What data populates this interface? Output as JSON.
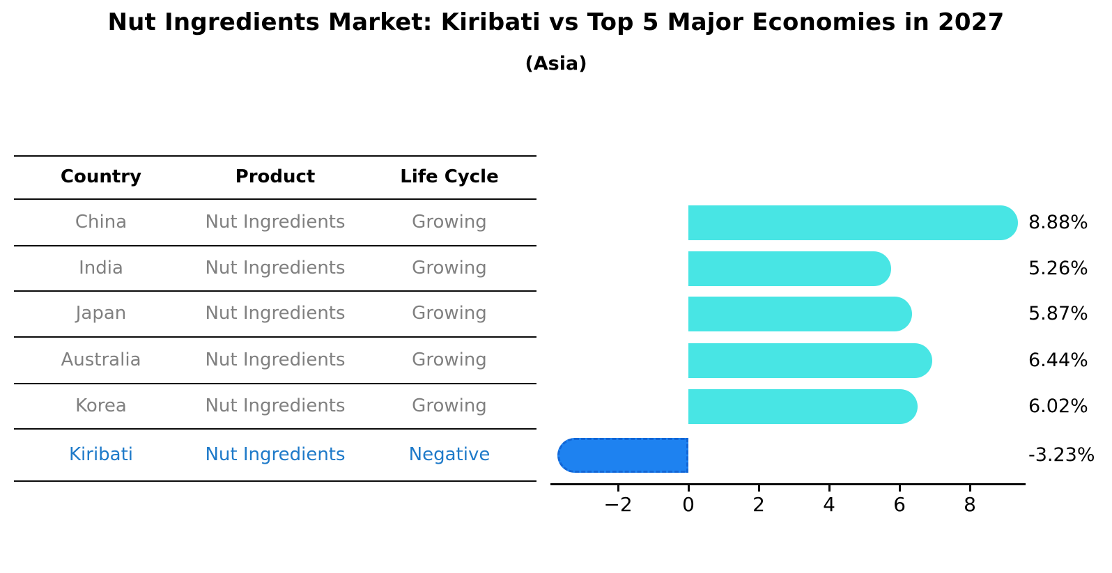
{
  "title": "Nut Ingredients Market: Kiribati vs Top 5 Major Economies in 2027",
  "subtitle": "(Asia)",
  "table": {
    "headers": [
      "Country",
      "Product",
      "Life Cycle"
    ],
    "rows": [
      {
        "country": "China",
        "product": "Nut Ingredients",
        "life_cycle": "Growing",
        "highlighted": false
      },
      {
        "country": "India",
        "product": "Nut Ingredients",
        "life_cycle": "Growing",
        "highlighted": false
      },
      {
        "country": "Japan",
        "product": "Nut Ingredients",
        "life_cycle": "Growing",
        "highlighted": false
      },
      {
        "country": "Australia",
        "product": "Nut Ingredients",
        "life_cycle": "Growing",
        "highlighted": false
      },
      {
        "country": "Korea",
        "product": "Nut Ingredients",
        "life_cycle": "Growing",
        "highlighted": false
      },
      {
        "country": "Kiribati",
        "product": "Nut Ingredients",
        "life_cycle": "Negative",
        "highlighted": true
      }
    ]
  },
  "chart_data": {
    "type": "bar",
    "orientation": "horizontal",
    "title": "Nut Ingredients Market: Kiribati vs Top 5 Major Economies in 2027 (Asia)",
    "categories": [
      "China",
      "India",
      "Japan",
      "Australia",
      "Korea",
      "Kiribati"
    ],
    "values": [
      8.88,
      5.26,
      5.87,
      6.44,
      6.02,
      -3.23
    ],
    "value_labels": [
      "8.88%",
      "5.26%",
      "5.87%",
      "6.44%",
      "6.02%",
      "-3.23%"
    ],
    "x_ticks": [
      -2,
      0,
      2,
      4,
      6,
      8
    ],
    "x_tick_labels": [
      "−2",
      "0",
      "2",
      "4",
      "6",
      "8"
    ],
    "xlim": [
      -3.9,
      9.6
    ],
    "grid": false,
    "legend": false,
    "colors": {
      "bar_positive": "#48e5e4",
      "bar_negative": "#1e82f0",
      "negative_border": "#1266d6",
      "highlight_text": "#1e7ac9",
      "table_text": "#808080",
      "heading_text": "#000000"
    }
  }
}
